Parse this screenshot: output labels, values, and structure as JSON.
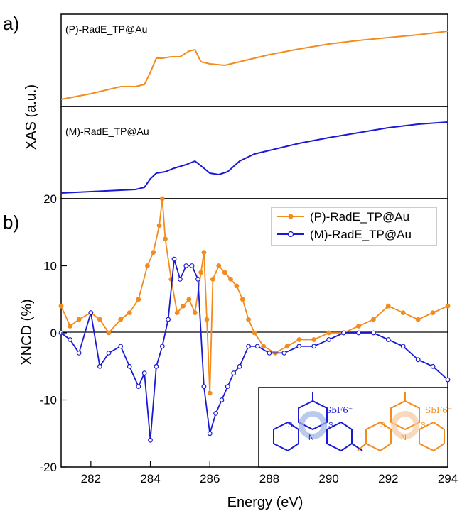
{
  "panel_labels": {
    "a": "a)",
    "b": "b)"
  },
  "colors": {
    "p_series": "#F28C1E",
    "m_series": "#1A1AD6",
    "axis": "#000000"
  },
  "chart_data": [
    {
      "type": "line",
      "panel": "a-top",
      "label": "(P)-RadE_TP@Au",
      "ylabel": "XAS (a.u.)",
      "x": [
        281,
        282,
        283,
        283.5,
        283.8,
        284.0,
        284.2,
        284.4,
        284.7,
        285.0,
        285.3,
        285.5,
        285.7,
        286.0,
        286.5,
        287.0,
        287.5,
        288.0,
        289.0,
        290.0,
        291.0,
        292.0,
        293.0,
        294.0
      ],
      "y": [
        0.02,
        0.1,
        0.2,
        0.2,
        0.23,
        0.4,
        0.6,
        0.6,
        0.62,
        0.62,
        0.7,
        0.72,
        0.55,
        0.52,
        0.5,
        0.55,
        0.6,
        0.65,
        0.73,
        0.8,
        0.85,
        0.89,
        0.93,
        0.98
      ]
    },
    {
      "type": "line",
      "panel": "a-bottom",
      "label": "(M)-RadE_TP@Au",
      "ylabel": "XAS (a.u.)",
      "x": [
        281,
        282,
        283,
        283.5,
        283.8,
        284.0,
        284.2,
        284.5,
        284.8,
        285.2,
        285.5,
        285.8,
        286.0,
        286.3,
        286.6,
        287.0,
        287.5,
        288.0,
        289.0,
        290.0,
        291.0,
        292.0,
        293.0,
        294.0
      ],
      "y": [
        0.0,
        0.02,
        0.04,
        0.05,
        0.08,
        0.2,
        0.28,
        0.3,
        0.35,
        0.4,
        0.45,
        0.35,
        0.28,
        0.26,
        0.3,
        0.45,
        0.55,
        0.6,
        0.7,
        0.78,
        0.85,
        0.92,
        0.97,
        1.0
      ]
    },
    {
      "type": "line",
      "panel": "b",
      "ylabel": "XNCD (%)",
      "xlabel": "Energy (eV)",
      "xlim": [
        281,
        294
      ],
      "ylim": [
        -20,
        20
      ],
      "xticks": [
        "282",
        "284",
        "286",
        "288",
        "290",
        "292",
        "294"
      ],
      "yticks": [
        "20",
        "10",
        "0",
        "-10",
        "-20"
      ],
      "legend_position": "top-right",
      "series": [
        {
          "name": "(P)-RadE_TP@Au",
          "x": [
            281.0,
            281.3,
            281.6,
            282.0,
            282.3,
            282.6,
            283.0,
            283.3,
            283.6,
            283.9,
            284.1,
            284.3,
            284.4,
            284.5,
            284.7,
            284.9,
            285.1,
            285.3,
            285.5,
            285.7,
            285.8,
            285.9,
            286.0,
            286.1,
            286.3,
            286.5,
            286.7,
            286.9,
            287.1,
            287.3,
            287.5,
            287.8,
            288.2,
            288.6,
            289.0,
            289.5,
            290.0,
            290.5,
            291.0,
            291.5,
            292.0,
            292.5,
            293.0,
            293.5,
            294.0
          ],
          "y": [
            4,
            1,
            2,
            3,
            2,
            0,
            2,
            3,
            5,
            10,
            12,
            16,
            20,
            14,
            8,
            3,
            4,
            5,
            3,
            9,
            12,
            2,
            -9,
            8,
            10,
            9,
            8,
            7,
            5,
            2,
            0,
            -2,
            -3,
            -2,
            -1,
            -1,
            0,
            0,
            1,
            2,
            4,
            3,
            2,
            3,
            4
          ]
        },
        {
          "name": "(M)-RadE_TP@Au",
          "x": [
            281.0,
            281.3,
            281.6,
            282.0,
            282.3,
            282.6,
            283.0,
            283.3,
            283.6,
            283.8,
            284.0,
            284.2,
            284.4,
            284.6,
            284.8,
            285.0,
            285.2,
            285.4,
            285.6,
            285.8,
            286.0,
            286.2,
            286.4,
            286.6,
            286.8,
            287.0,
            287.3,
            287.6,
            288.0,
            288.5,
            289.0,
            289.5,
            290.0,
            290.5,
            291.0,
            291.5,
            292.0,
            292.5,
            293.0,
            293.5,
            294.0
          ],
          "y": [
            0,
            -1,
            -3,
            3,
            -5,
            -3,
            -2,
            -5,
            -8,
            -6,
            -16,
            -5,
            -2,
            2,
            11,
            8,
            10,
            10,
            8,
            -8,
            -15,
            -12,
            -10,
            -8,
            -6,
            -5,
            -2,
            -2,
            -3,
            -3,
            -2,
            -2,
            -1,
            0,
            0,
            0,
            -1,
            -2,
            -4,
            -5,
            -7
          ]
        }
      ]
    }
  ],
  "inset": {
    "anion_left": "SbF6⁻",
    "anion_right": "SbF6⁻"
  }
}
